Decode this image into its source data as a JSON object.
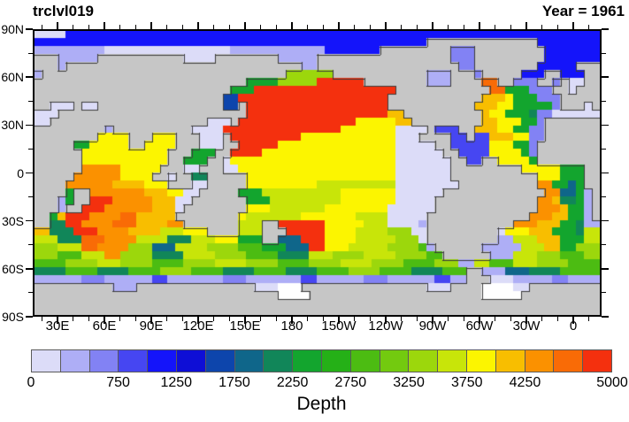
{
  "header": {
    "title": "trclvl019",
    "year": "Year = 1961"
  },
  "colorbar": {
    "title": "Depth"
  },
  "palette": [
    "#dcdcf8",
    "#aeaef6",
    "#8282f4",
    "#4646f2",
    "#1414fa",
    "#0e0ed6",
    "#0d45ac",
    "#0f668a",
    "#118659",
    "#13a52e",
    "#25b017",
    "#4cbc12",
    "#73ca0f",
    "#9cd70c",
    "#c8e509",
    "#fcf500",
    "#f8be00",
    "#fb9100",
    "#f96b06",
    "#f4300e"
  ],
  "map": {
    "land_color": "#c6c6c6",
    "ice_color": "#ffffff",
    "coast_color": "#3c3c3c"
  },
  "chart_data": {
    "type": "heatmap",
    "title": "trclvl019",
    "subtitle": "Year = 1961",
    "colorbar_title": "Depth",
    "levels_min": 0,
    "levels_max": 5000,
    "level_step": 250,
    "n_color_boxes": 20,
    "colorbar_labels": [
      {
        "text": "0",
        "boundary": 0
      },
      {
        "text": "750",
        "boundary": 3
      },
      {
        "text": "1250",
        "boundary": 5
      },
      {
        "text": "1750",
        "boundary": 7
      },
      {
        "text": "2250",
        "boundary": 9
      },
      {
        "text": "2750",
        "boundary": 11
      },
      {
        "text": "3250",
        "boundary": 13
      },
      {
        "text": "3750",
        "boundary": 15
      },
      {
        "text": "4250",
        "boundary": 17
      },
      {
        "text": "5000",
        "boundary": 20
      }
    ],
    "x_tick_labels": [
      "30E",
      "60E",
      "90E",
      "120E",
      "150E",
      "180",
      "150W",
      "120W",
      "90W",
      "60W",
      "30W",
      "0"
    ],
    "y_tick_labels": [
      "90N",
      "60N",
      "30N",
      "0",
      "30S",
      "60S",
      "90S"
    ],
    "lat_range": [
      90,
      -90
    ],
    "lon_start_deg_east": 20,
    "grid_size_cols_rows": [
      72,
      36
    ],
    "grid_legend": "# = land, w = ice shelf, a..t = color classes for values 0-5000 in steps of 250",
    "grid_rows_rle": [
      "4a68e",
      "50e14#8e",
      "9b16a12b7e9#3c9#7e",
      "3#5b11#4a8#5b17#3c9#7e",
      "3#1b30#2b18#2c8#5e3#",
      "1b31#6n12#3b3#1c5#3e2#3e2#",
      "27#4j5n6t8#3b4#2s2#3c2#1c1#2a2#",
      "25#3j18t12#2s3j3c2#1a3#",
      "24#2g19t12#3q1p3j3c5#",
      "2#3a1#2a16#2g1#18t11#3q2p5j1c3#1a1#",
      "3a24#18t2q10#1q2p3j1i2c6a",
      "2a20#3a1#15t5p2q9#2q3p2j1c7#",
      "9#1b10#4a15t7p4a1#3d2#3q2p2j2c7#",
      "8#4p3#3p3#3a1#9t12p3a4#2d1#2d3q2p2c7#",
      "5#2j5p2#4p3#3a2#5t15p5a2#5d3p2j1c8#",
      "6#11p3#3j2#4t17p6a2#4d4p1j1c8#",
      "6#11p2#3j2#1a21p7a2#2d2#4p1j8#",
      "6#5r5p3#2a3#2a20p7a9#5p3j2#",
      "5#6r4p2#1a2#2i5#19p7a11#3p3j2#",
      "4#6r4q3p3#2a5#9p10o8a10#2r2j1h1j2#",
      "4#1j2#7r3q2p2a5#3j10o7p6a13#2r2h1j1b1#",
      "3#1b1j2#3t5r3q2a7#3j9o7p5a13#2r1q2i1j1b1#",
      "3#1b2#3t6r3q1a8#3p7o8p6a13#3r1q2j1b1#",
      "2#1j1q3t4r2s5q8#1p7o7p4o5a13#3r2q2j1b1#",
      "2#2i2t4r3s4q2r7#3o2#6t5p3o4a1b11#3r3q2j1i2b",
      "2q3i3t4r4q3o3p4#3o3#5t4p4o3n2a9#1a3p3q3j1i2o",
      "3o3i3s4r4o3i3o3p3j2#3h3t4p5o3n1a9#2b3o3q3j2o",
      "3n3o2s4r3n3h4o4n3l3j3h2t3p5o4n1l1b6#5b3o2q2j3n",
      "3n3l3o2r4n4i4o4n4l4i3o4n4o4n2l6#3b3o3n3l2n",
      "4l4n3o4n4l4n4o4n4l4n4o4n4l3n2b2o3l3o4n4l",
      "4i4l4i4l4n4l4i4l4i4l4n4l4i3l2#3b3h4i5l",
      "6b3c6b2d7b3c7b2d6b3c6b2d2b3#3a5b2c4b",
      "10#3b15#3a3w16#3a4#4w2a9#",
      "31#4w22#5w10#",
      "72#",
      "72#"
    ]
  }
}
